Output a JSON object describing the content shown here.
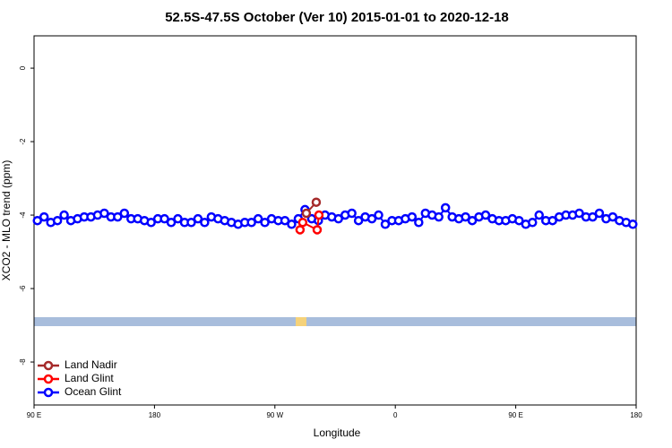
{
  "chart_data": {
    "type": "line",
    "title": "52.5S-47.5S October (Ver 10)   2015-01-01 to 2020-12-18",
    "x_label": "Longitude",
    "y_label": "XCO2 - MLO trend (ppm)",
    "xlim": [
      90,
      540
    ],
    "ylim": [
      -9.17,
      0.88
    ],
    "xticks": [
      {
        "value": 90,
        "label": "90 E"
      },
      180,
      {
        "value": 270,
        "label": "90 W"
      },
      {
        "value": 360,
        "label": "0"
      },
      {
        "value": 450,
        "label": "90 E"
      },
      {
        "value": 540,
        "label": "180"
      }
    ],
    "yticks": [
      0,
      -2,
      -4,
      -6,
      -8
    ],
    "legend": "bottom-left",
    "series": [
      {
        "name": "Land Nadir",
        "color": "#a52a2a",
        "x": [
          293.5,
          300.9
        ],
        "values": [
          -3.95,
          -3.65
        ]
      },
      {
        "name": "Land Glint",
        "color": "#ff0000",
        "x": [
          288.8,
          290.8,
          301.6,
          302.9
        ],
        "values": [
          -4.4,
          -4.2,
          -4.4,
          -4.0
        ]
      },
      {
        "name": "Ocean Glint",
        "color": "#0000ff",
        "x": [
          92.5,
          97.5,
          102.5,
          107.5,
          112.5,
          117.5,
          122.5,
          127.5,
          132.5,
          137.5,
          142.5,
          147.5,
          152.5,
          157.5,
          162.5,
          167.5,
          172.5,
          177.5,
          182.5,
          187.5,
          192.5,
          197.5,
          202.5,
          207.5,
          212.5,
          217.5,
          222.5,
          227.5,
          232.5,
          237.5,
          242.5,
          247.5,
          252.5,
          257.5,
          262.5,
          267.5,
          272.5,
          277.5,
          282.5,
          287.5,
          292.5,
          297.5,
          302.5,
          307.5,
          312.5,
          317.5,
          322.5,
          327.5,
          332.5,
          337.5,
          342.5,
          347.5,
          352.5,
          357.5,
          362.5,
          367.5,
          372.5,
          377.5,
          382.5,
          387.5,
          392.5,
          397.5,
          402.5,
          407.5,
          412.5,
          417.5,
          422.5,
          427.5,
          432.5,
          437.5,
          442.5,
          447.5,
          452.5,
          457.5,
          462.5,
          467.5,
          472.5,
          477.5,
          482.5,
          487.5,
          492.5,
          497.5,
          502.5,
          507.5,
          512.5,
          517.5,
          522.5,
          527.5,
          532.5,
          537.5
        ],
        "values": [
          -4.15,
          -4.05,
          -4.2,
          -4.15,
          -4.0,
          -4.15,
          -4.1,
          -4.05,
          -4.05,
          -4.0,
          -3.95,
          -4.05,
          -4.05,
          -3.95,
          -4.1,
          -4.1,
          -4.15,
          -4.2,
          -4.1,
          -4.1,
          -4.2,
          -4.1,
          -4.2,
          -4.2,
          -4.1,
          -4.2,
          -4.05,
          -4.1,
          -4.15,
          -4.2,
          -4.25,
          -4.2,
          -4.2,
          -4.1,
          -4.2,
          -4.1,
          -4.15,
          -4.15,
          -4.25,
          -4.1,
          -3.85,
          -4.1,
          -4.15,
          -4.0,
          -4.05,
          -4.1,
          -4.0,
          -3.95,
          -4.15,
          -4.05,
          -4.1,
          -4.0,
          -4.25,
          -4.15,
          -4.15,
          -4.1,
          -4.05,
          -4.2,
          -3.95,
          -4.0,
          -4.05,
          -3.8,
          -4.05,
          -4.1,
          -4.05,
          -4.15,
          -4.05,
          -4.0,
          -4.1,
          -4.15,
          -4.15,
          -4.1,
          -4.15,
          -4.25,
          -4.2,
          -4.0,
          -4.15,
          -4.15,
          -4.05,
          -4.0,
          -4.0,
          -3.95,
          -4.05,
          -4.05,
          -3.95,
          -4.1,
          -4.05,
          -4.15,
          -4.2,
          -4.25
        ]
      }
    ]
  }
}
